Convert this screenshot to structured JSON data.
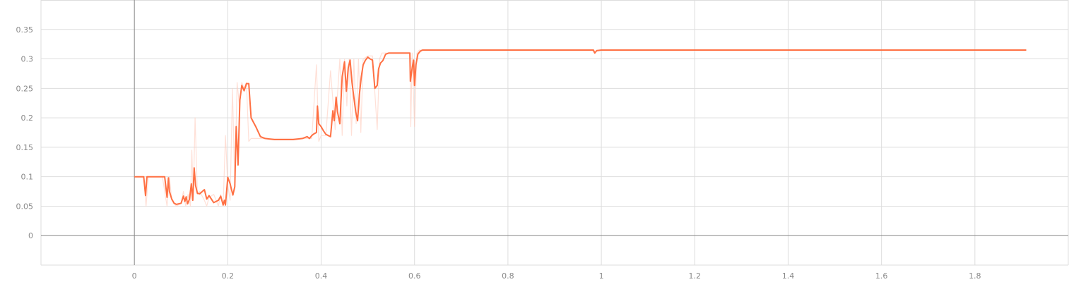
{
  "chart_data": {
    "type": "line",
    "title": "",
    "xlabel": "",
    "ylabel": "",
    "xlim": [
      -0.2,
      2.0
    ],
    "ylim": [
      -0.05,
      0.4
    ],
    "x_ticks": [
      0,
      0.2,
      0.4,
      0.6,
      0.8,
      1,
      1.2,
      1.4,
      1.6,
      1.8
    ],
    "x_tick_labels": [
      "0",
      "0.2",
      "0.4",
      "0.6",
      "0.8",
      "1",
      "1.2",
      "1.4",
      "1.6",
      "1.8"
    ],
    "y_ticks": [
      0,
      0.05,
      0.1,
      0.15,
      0.2,
      0.25,
      0.3,
      0.35
    ],
    "y_tick_labels": [
      "0",
      "0.05",
      "0.1",
      "0.15",
      "0.2",
      "0.25",
      "0.3",
      "0.35"
    ],
    "grid": true,
    "legend": "none",
    "colors": {
      "smoothed": "#ff7043",
      "raw": "#ffccbc",
      "grid": "#dddddd",
      "zero_axis": "#888888",
      "tick_text": "#888888"
    },
    "series": [
      {
        "role": "raw",
        "x": [
          0.0,
          0.02,
          0.025,
          0.03,
          0.06,
          0.07,
          0.075,
          0.08,
          0.09,
          0.1,
          0.105,
          0.11,
          0.115,
          0.12,
          0.123,
          0.126,
          0.13,
          0.135,
          0.14,
          0.15,
          0.155,
          0.16,
          0.17,
          0.18,
          0.185,
          0.19,
          0.195,
          0.2,
          0.205,
          0.21,
          0.215,
          0.22,
          0.225,
          0.23,
          0.235,
          0.24,
          0.245,
          0.25,
          0.3,
          0.36,
          0.38,
          0.39,
          0.395,
          0.4,
          0.41,
          0.42,
          0.43,
          0.44,
          0.445,
          0.45,
          0.455,
          0.46,
          0.465,
          0.47,
          0.475,
          0.48,
          0.485,
          0.49,
          0.5,
          0.51,
          0.52,
          0.525,
          0.53,
          0.54,
          0.55,
          0.59,
          0.592,
          0.595,
          0.6,
          0.605,
          0.61,
          0.62,
          0.98,
          0.985,
          0.99,
          1.91
        ],
        "y": [
          0.1,
          0.1,
          0.05,
          0.1,
          0.1,
          0.05,
          0.1,
          0.06,
          0.05,
          0.055,
          0.075,
          0.05,
          0.07,
          0.05,
          0.145,
          0.06,
          0.2,
          0.07,
          0.075,
          0.06,
          0.05,
          0.065,
          0.07,
          0.05,
          0.07,
          0.05,
          0.17,
          0.085,
          0.06,
          0.25,
          0.085,
          0.26,
          0.22,
          0.26,
          0.25,
          0.26,
          0.16,
          0.165,
          0.165,
          0.165,
          0.165,
          0.29,
          0.16,
          0.17,
          0.17,
          0.28,
          0.18,
          0.3,
          0.17,
          0.3,
          0.22,
          0.3,
          0.17,
          0.3,
          0.19,
          0.3,
          0.175,
          0.3,
          0.305,
          0.305,
          0.18,
          0.3,
          0.31,
          0.31,
          0.31,
          0.31,
          0.185,
          0.31,
          0.185,
          0.31,
          0.315,
          0.315,
          0.315,
          0.31,
          0.315,
          0.315
        ]
      },
      {
        "role": "smoothed",
        "x": [
          0.0,
          0.02,
          0.024,
          0.027,
          0.03,
          0.065,
          0.07,
          0.073,
          0.075,
          0.08,
          0.085,
          0.09,
          0.1,
          0.105,
          0.108,
          0.111,
          0.114,
          0.118,
          0.122,
          0.125,
          0.128,
          0.131,
          0.135,
          0.14,
          0.15,
          0.155,
          0.16,
          0.17,
          0.18,
          0.185,
          0.19,
          0.193,
          0.195,
          0.2,
          0.205,
          0.208,
          0.211,
          0.215,
          0.218,
          0.222,
          0.226,
          0.23,
          0.235,
          0.24,
          0.245,
          0.25,
          0.26,
          0.27,
          0.28,
          0.3,
          0.32,
          0.34,
          0.36,
          0.37,
          0.375,
          0.38,
          0.385,
          0.39,
          0.392,
          0.395,
          0.4,
          0.405,
          0.41,
          0.415,
          0.42,
          0.425,
          0.428,
          0.432,
          0.435,
          0.44,
          0.445,
          0.45,
          0.454,
          0.458,
          0.462,
          0.466,
          0.47,
          0.474,
          0.478,
          0.482,
          0.486,
          0.49,
          0.495,
          0.5,
          0.505,
          0.51,
          0.515,
          0.52,
          0.523,
          0.527,
          0.532,
          0.538,
          0.545,
          0.56,
          0.59,
          0.591,
          0.595,
          0.598,
          0.6,
          0.603,
          0.607,
          0.612,
          0.617,
          0.625,
          0.98,
          0.983,
          0.986,
          0.99,
          1.0,
          1.91
        ],
        "y": [
          0.1,
          0.1,
          0.068,
          0.1,
          0.1,
          0.1,
          0.065,
          0.098,
          0.075,
          0.062,
          0.055,
          0.053,
          0.055,
          0.067,
          0.058,
          0.066,
          0.054,
          0.062,
          0.088,
          0.06,
          0.115,
          0.085,
          0.072,
          0.071,
          0.078,
          0.062,
          0.068,
          0.056,
          0.06,
          0.067,
          0.052,
          0.06,
          0.052,
          0.099,
          0.088,
          0.078,
          0.069,
          0.083,
          0.185,
          0.12,
          0.23,
          0.255,
          0.246,
          0.258,
          0.258,
          0.2,
          0.185,
          0.168,
          0.165,
          0.163,
          0.163,
          0.163,
          0.165,
          0.168,
          0.165,
          0.17,
          0.173,
          0.175,
          0.22,
          0.19,
          0.185,
          0.178,
          0.172,
          0.17,
          0.168,
          0.212,
          0.195,
          0.235,
          0.21,
          0.19,
          0.27,
          0.295,
          0.245,
          0.285,
          0.298,
          0.26,
          0.235,
          0.21,
          0.195,
          0.24,
          0.27,
          0.29,
          0.298,
          0.303,
          0.3,
          0.298,
          0.25,
          0.255,
          0.283,
          0.293,
          0.297,
          0.308,
          0.31,
          0.31,
          0.31,
          0.262,
          0.285,
          0.298,
          0.255,
          0.29,
          0.308,
          0.313,
          0.315,
          0.315,
          0.315,
          0.315,
          0.31,
          0.314,
          0.315,
          0.315
        ]
      }
    ]
  }
}
